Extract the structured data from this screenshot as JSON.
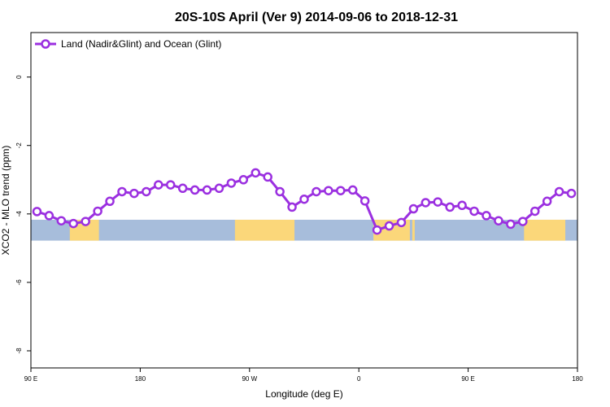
{
  "chart_data": {
    "type": "line",
    "title": "20S-10S April (Ver 9)   2014-09-06 to 2018-12-31",
    "xlabel": "Longitude (deg E)",
    "ylabel": "XCO2 - MLO trend (ppm)",
    "x_ticks": [
      {
        "value": 90,
        "label": "90 E"
      },
      {
        "value": 180,
        "label": "180"
      },
      {
        "value": 270,
        "label": "90 W"
      },
      {
        "value": 360,
        "label": "0"
      },
      {
        "value": 450,
        "label": "90 E"
      },
      {
        "value": 540,
        "label": "180"
      }
    ],
    "y_ticks": [
      {
        "value": 0,
        "label": "0"
      },
      {
        "value": -2,
        "label": "-2"
      },
      {
        "value": -4,
        "label": "-4"
      },
      {
        "value": -6,
        "label": "-6"
      },
      {
        "value": -8,
        "label": "-8"
      }
    ],
    "xlim": [
      90,
      540
    ],
    "ylim": [
      -8.5,
      1.3
    ],
    "legend_position": "top-left",
    "grid": false,
    "series": [
      {
        "name": "Land (Nadir&Glint) and Ocean (Glint)",
        "color": "#9b30e0",
        "x": [
          95,
          105,
          115,
          125,
          135,
          145,
          155,
          165,
          175,
          185,
          195,
          205,
          215,
          225,
          235,
          245,
          255,
          265,
          275,
          285,
          295,
          305,
          315,
          325,
          335,
          345,
          355,
          365,
          375,
          385,
          395,
          405,
          415,
          425,
          435,
          445,
          455,
          465,
          475,
          485,
          495,
          505,
          515,
          525,
          535
        ],
        "y": [
          -3.93,
          -4.05,
          -4.2,
          -4.28,
          -4.22,
          -3.92,
          -3.63,
          -3.35,
          -3.4,
          -3.35,
          -3.15,
          -3.15,
          -3.25,
          -3.3,
          -3.3,
          -3.25,
          -3.1,
          -3.0,
          -2.8,
          -2.92,
          -3.35,
          -3.8,
          -3.57,
          -3.35,
          -3.32,
          -3.32,
          -3.3,
          -3.62,
          -4.47,
          -4.35,
          -4.25,
          -3.85,
          -3.67,
          -3.65,
          -3.8,
          -3.75,
          -3.92,
          -4.05,
          -4.2,
          -4.3,
          -4.22,
          -3.92,
          -3.63,
          -3.35,
          -3.4
        ]
      }
    ],
    "map_band": {
      "y_top": -4.17,
      "y_bottom": -4.78,
      "ocean_color": "#a7bddb",
      "land_color": "#fbd77a",
      "land_segments": [
        {
          "x0": 122,
          "x1": 146
        },
        {
          "x0": 258,
          "x1": 307
        },
        {
          "x0": 372,
          "x1": 402
        },
        {
          "x0": 404,
          "x1": 406
        },
        {
          "x0": 496,
          "x1": 530
        }
      ]
    }
  }
}
